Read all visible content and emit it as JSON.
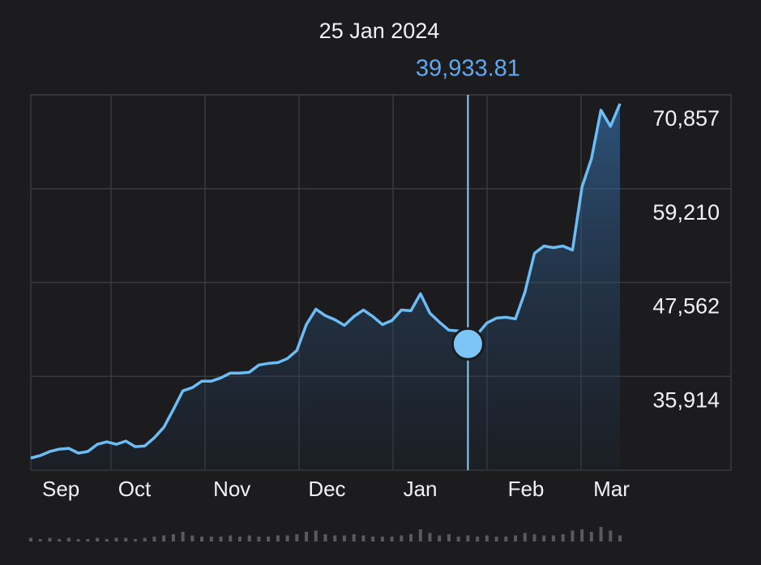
{
  "chart_data": {
    "type": "line",
    "title": "25 Jan 2024",
    "highlight": {
      "value": 39933.81,
      "label": "39,933.81"
    },
    "categories": [
      "Sep",
      null,
      null,
      null,
      null,
      null,
      null,
      null,
      "Oct",
      null,
      null,
      null,
      null,
      null,
      null,
      null,
      null,
      null,
      "Nov",
      null,
      null,
      null,
      null,
      null,
      null,
      null,
      null,
      null,
      "Dec",
      null,
      null,
      null,
      null,
      null,
      null,
      null,
      null,
      null,
      "Jan",
      null,
      null,
      null,
      null,
      null,
      null,
      null,
      null,
      null,
      null,
      "Feb",
      null,
      null,
      null,
      null,
      null,
      null,
      null,
      null,
      "Mar",
      null,
      null,
      null,
      null
    ],
    "series": [
      {
        "color": "#6cbdf6",
        "values": [
          25772,
          26074,
          26576,
          26877,
          26977,
          26375,
          26576,
          27480,
          27781,
          27480,
          27881,
          27178,
          27279,
          28283,
          29589,
          31798,
          34108,
          34510,
          35313,
          35313,
          35715,
          36318,
          36318,
          36418,
          37322,
          37523,
          37623,
          38125,
          39130,
          42343,
          44252,
          43448,
          42946,
          42243,
          43348,
          44151,
          43348,
          42343,
          42846,
          44151,
          44051,
          46160,
          43750,
          42645,
          41640,
          41540,
          39933.81,
          41138,
          42544,
          43147,
          43247,
          43046,
          46361,
          51181,
          52085,
          51885,
          52085,
          51583,
          59417,
          62932,
          68957,
          66949,
          69761
        ]
      }
    ],
    "volume": [
      3,
      2,
      3,
      2,
      3,
      2,
      2,
      3,
      2,
      3,
      3,
      2,
      3,
      4,
      5,
      6,
      8,
      5,
      4,
      4,
      4,
      5,
      4,
      5,
      4,
      4,
      5,
      5,
      6,
      8,
      9,
      6,
      5,
      5,
      6,
      5,
      4,
      4,
      4,
      5,
      6,
      10,
      7,
      5,
      6,
      4,
      5,
      4,
      5,
      4,
      4,
      5,
      7,
      6,
      5,
      5,
      6,
      9,
      10,
      8,
      12,
      9,
      5
    ],
    "ylim": [
      24266,
      70857
    ],
    "yticks": [
      {
        "value": 35914,
        "label": "35,914"
      },
      {
        "value": 47562,
        "label": "47,562"
      },
      {
        "value": 59210,
        "label": "59,210"
      },
      {
        "value": 70857,
        "label": "70,857"
      }
    ]
  }
}
